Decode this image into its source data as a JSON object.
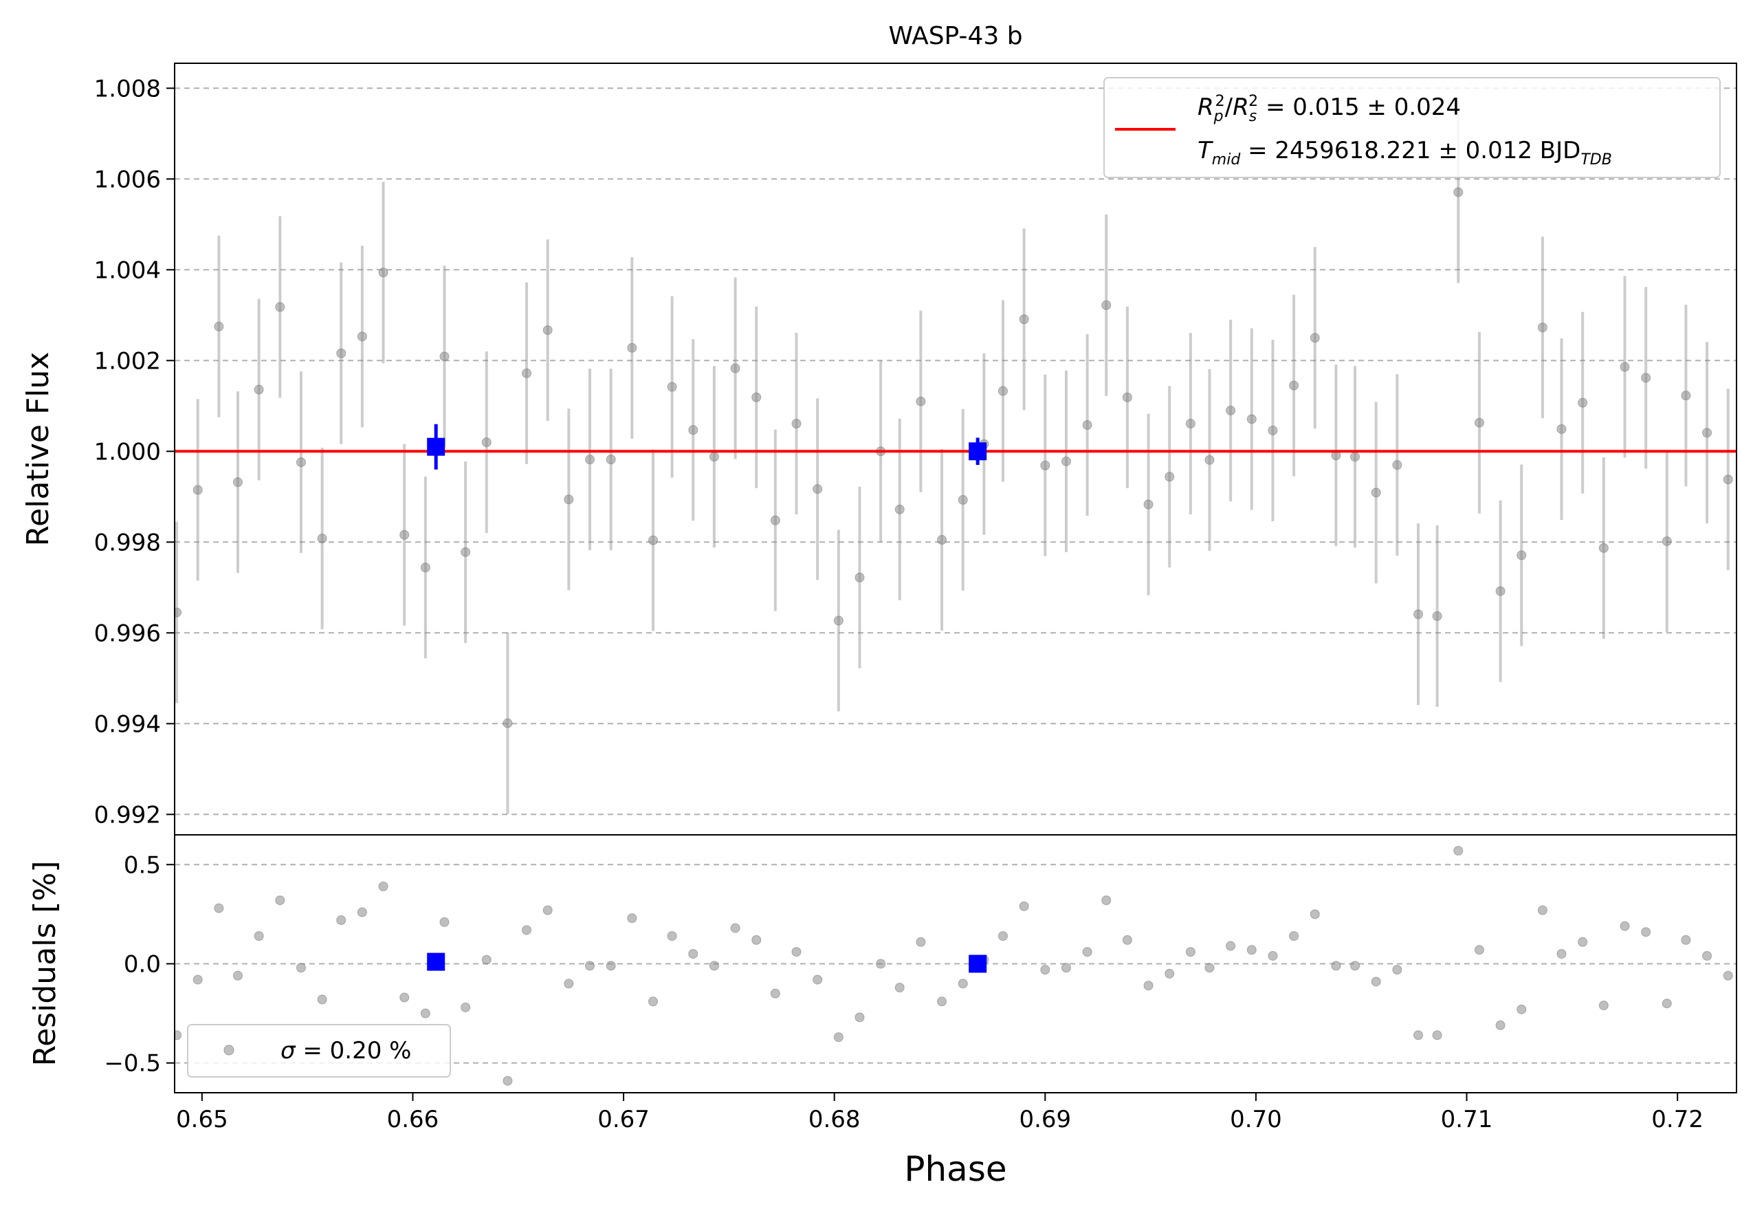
{
  "chart_data": {
    "type": "scatter",
    "title": "WASP-43 b",
    "xlabel": "Phase",
    "top": {
      "ylabel": "Relative Flux",
      "ylim": [
        0.99155,
        1.00855
      ],
      "yticks": [
        0.992,
        0.994,
        0.996,
        0.998,
        1.0,
        1.002,
        1.004,
        1.006,
        1.008
      ],
      "ytick_labels": [
        "0.992",
        "0.994",
        "0.996",
        "0.998",
        "1.000",
        "1.002",
        "1.004",
        "1.006",
        "1.008"
      ],
      "grid": "horizontal dashed",
      "model_y": 1.0,
      "legend": {
        "placement": "top-right",
        "entry_line1": "R_p^2/R_s^2 = 0.015 ± 0.024",
        "entry_line2": "T_mid = 2459618.221 ± 0.012 BJD_TDB",
        "rp_sym": "R",
        "rp_sub": "p",
        "rp_sup": "2",
        "rs_sym": "R",
        "rs_sub": "s",
        "rs_sup": "2",
        "depth_text": " = 0.015 ± 0.024",
        "tmid_sym": "T",
        "tmid_sub": "mid",
        "tmid_text": " = 2459618.221 ± 0.012 BJD",
        "tmid_tail_sub": "TDB"
      }
    },
    "bottom": {
      "ylabel": "Residuals [%]",
      "ylim": [
        -0.65,
        0.65
      ],
      "yticks": [
        -0.5,
        0.0,
        0.5
      ],
      "ytick_labels": [
        "−0.5",
        "0.0",
        "0.5"
      ],
      "legend": {
        "placement": "bottom-left",
        "sigma_sym": "σ",
        "sigma_text": " = 0.20 %"
      }
    },
    "xlim": [
      0.6487,
      0.7228
    ],
    "xticks": [
      0.65,
      0.66,
      0.67,
      0.68,
      0.69,
      0.7,
      0.71,
      0.72
    ],
    "xtick_labels": [
      "0.65",
      "0.66",
      "0.67",
      "0.68",
      "0.69",
      "0.70",
      "0.71",
      "0.72"
    ],
    "error": 0.002,
    "series": [
      {
        "kind": "raw",
        "color": "#808080",
        "x": [
          0.6488,
          0.6498,
          0.6508,
          0.6517,
          0.6527,
          0.6537,
          0.6547,
          0.6557,
          0.6566,
          0.6576,
          0.6586,
          0.6596,
          0.6606,
          0.6615,
          0.6625,
          0.6635,
          0.6645,
          0.6654,
          0.6664,
          0.6674,
          0.6684,
          0.6694,
          0.6704,
          0.6714,
          0.6723,
          0.6733,
          0.6743,
          0.6753,
          0.6763,
          0.6772,
          0.6782,
          0.6792,
          0.6802,
          0.6812,
          0.6822,
          0.6831,
          0.6841,
          0.6851,
          0.6861,
          0.6871,
          0.688,
          0.689,
          0.69,
          0.691,
          0.692,
          0.6929,
          0.6939,
          0.6949,
          0.6959,
          0.6969,
          0.6978,
          0.6988,
          0.6998,
          0.7008,
          0.7018,
          0.7028,
          0.7038,
          0.7047,
          0.7057,
          0.7067,
          0.7077,
          0.7086,
          0.7096,
          0.7106,
          0.7116,
          0.7126,
          0.7136,
          0.7145,
          0.7155,
          0.7165,
          0.7175,
          0.7185,
          0.7195,
          0.7204,
          0.7214,
          0.7224
        ],
        "y": [
          0.99645,
          0.99915,
          1.00275,
          0.99932,
          1.00136,
          1.00318,
          0.99976,
          0.99808,
          1.00216,
          1.00253,
          1.00394,
          0.99816,
          0.99744,
          1.00209,
          0.99778,
          1.0002,
          0.99401,
          1.00172,
          1.00267,
          0.99894,
          0.99982,
          0.99982,
          1.00228,
          0.99804,
          1.00142,
          1.00047,
          0.99988,
          1.00183,
          1.00119,
          0.99848,
          1.00061,
          0.99917,
          0.99627,
          0.99722,
          1.0,
          0.99872,
          1.0011,
          0.99805,
          0.99893,
          1.00016,
          1.00133,
          1.00291,
          0.99969,
          0.99978,
          1.00058,
          1.00322,
          1.00119,
          0.99883,
          0.99944,
          1.00061,
          0.99981,
          1.0009,
          1.00071,
          1.00046,
          1.00145,
          1.0025,
          0.99991,
          0.99988,
          0.99909,
          0.9997,
          0.99641,
          0.99637,
          1.00571,
          1.00063,
          0.99692,
          0.99771,
          1.00273,
          1.00049,
          1.00107,
          0.99787,
          1.00186,
          1.00162,
          0.99802,
          1.00123,
          1.00041,
          0.99938
        ],
        "residuals": [
          -0.36,
          -0.08,
          0.28,
          -0.06,
          0.14,
          0.32,
          -0.02,
          -0.18,
          0.22,
          0.26,
          0.39,
          -0.17,
          -0.25,
          0.21,
          -0.22,
          0.02,
          -0.59,
          0.17,
          0.27,
          -0.1,
          -0.01,
          -0.01,
          0.23,
          -0.19,
          0.14,
          0.05,
          -0.01,
          0.18,
          0.12,
          -0.15,
          0.06,
          -0.08,
          -0.37,
          -0.27,
          0.0,
          -0.12,
          0.11,
          -0.19,
          -0.1,
          0.02,
          0.14,
          0.29,
          -0.03,
          -0.02,
          0.06,
          0.32,
          0.12,
          -0.11,
          -0.05,
          0.06,
          -0.02,
          0.09,
          0.07,
          0.04,
          0.14,
          0.25,
          -0.01,
          -0.01,
          -0.09,
          -0.03,
          -0.36,
          -0.36,
          0.57,
          0.07,
          -0.31,
          -0.23,
          0.27,
          0.05,
          0.11,
          -0.21,
          0.19,
          0.16,
          -0.2,
          0.12,
          0.04,
          -0.06
        ]
      },
      {
        "kind": "binned",
        "color": "#0000ff",
        "x": [
          0.6611,
          0.6868
        ],
        "y": [
          1.0001,
          1.0
        ],
        "err": [
          0.0005,
          0.0003
        ],
        "residuals": [
          0.01,
          0.0
        ]
      }
    ],
    "model_color": "#ff0000",
    "grid_color": "#b0b0b0"
  }
}
